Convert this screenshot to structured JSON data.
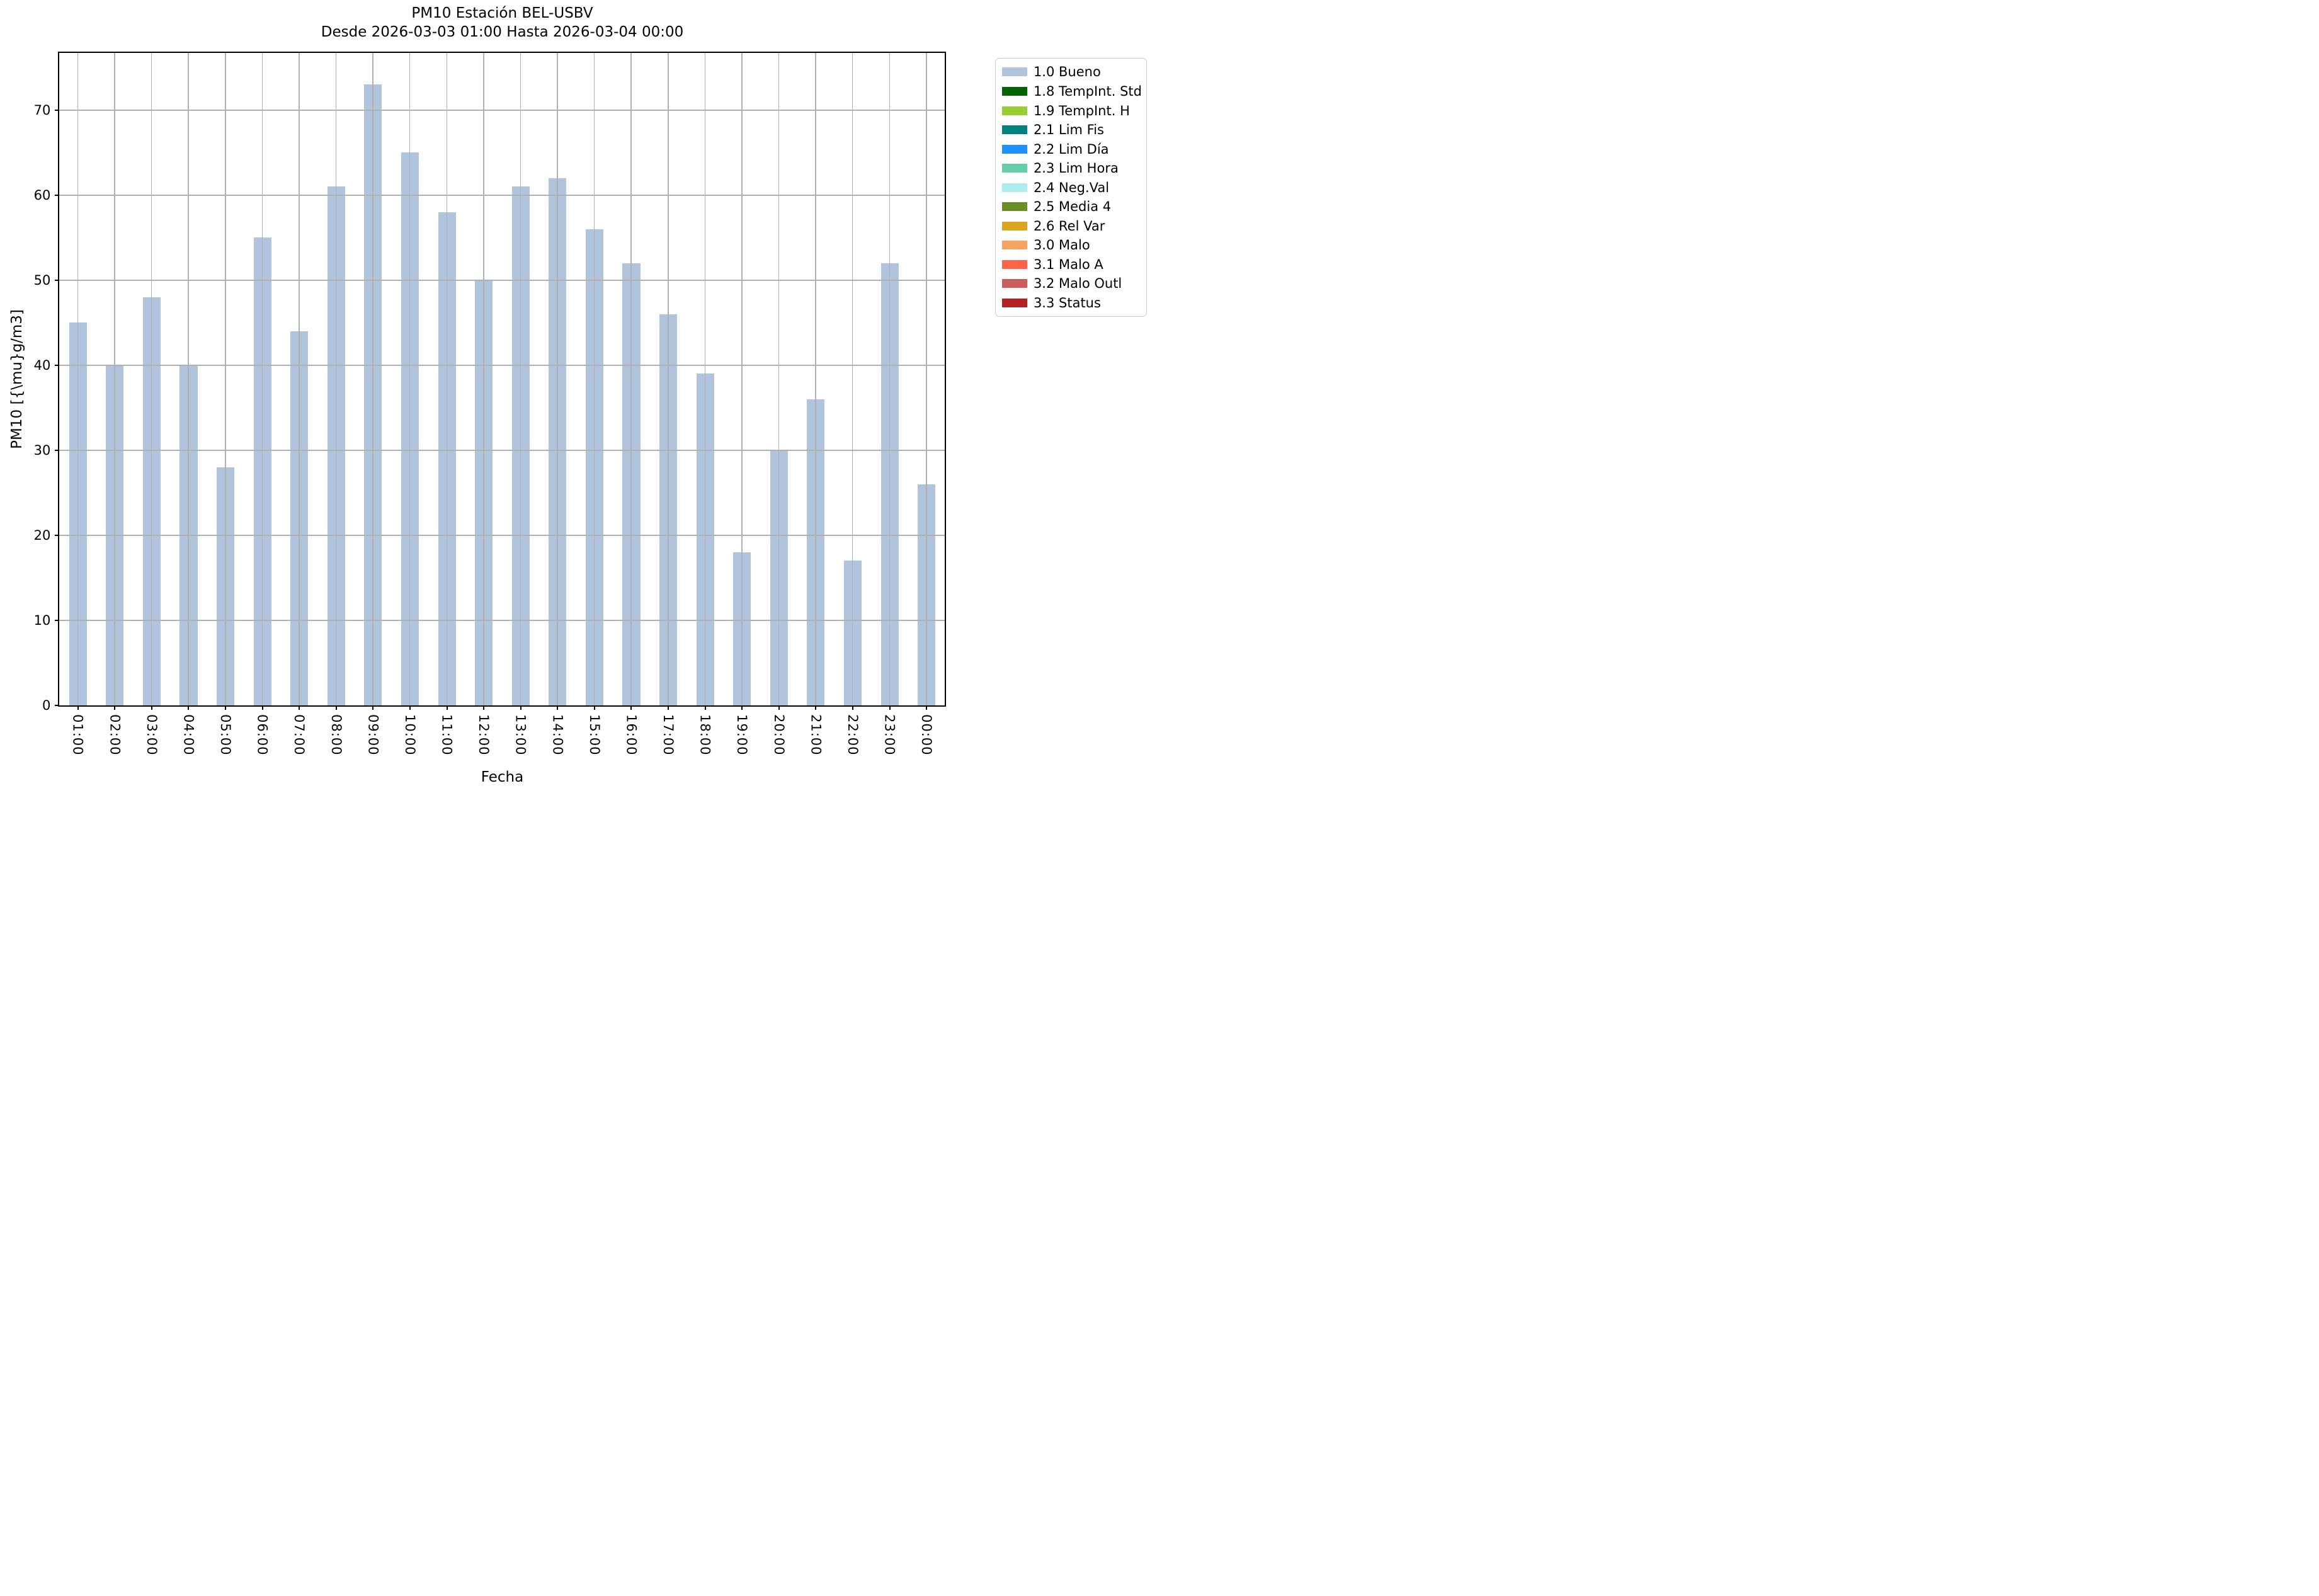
{
  "title": {
    "line1": "PM10 Estación BEL-USBV",
    "line2": "Desde 2026-03-03 01:00 Hasta 2026-03-04 00:00"
  },
  "chart_data": {
    "type": "bar",
    "title": "PM10 Estación BEL-USBV — Desde 2026-03-03 01:00 Hasta 2026-03-04 00:00",
    "xlabel": "Fecha",
    "ylabel": "PM10 [{\\mu}g/m3]",
    "categories": [
      "01:00",
      "02:00",
      "03:00",
      "04:00",
      "05:00",
      "06:00",
      "07:00",
      "08:00",
      "09:00",
      "10:00",
      "11:00",
      "12:00",
      "13:00",
      "14:00",
      "15:00",
      "16:00",
      "17:00",
      "18:00",
      "19:00",
      "20:00",
      "21:00",
      "22:00",
      "23:00",
      "00:00"
    ],
    "values": [
      45,
      40,
      48,
      40,
      28,
      55,
      44,
      61,
      73,
      65,
      58,
      50,
      61,
      62,
      56,
      52,
      46,
      39,
      18,
      30,
      36,
      17,
      52,
      26
    ],
    "series_color": "#B0C4DE",
    "series_legend_key": "1.0 Bueno",
    "ylim": [
      0,
      76.7
    ],
    "yticks": [
      0,
      10,
      20,
      30,
      40,
      50,
      60,
      70
    ],
    "grid": true,
    "grid_color": "#b0b0b0",
    "legend_position": "outside-upper-right",
    "legend": [
      {
        "label": "1.0 Bueno",
        "color": "#B0C4DE"
      },
      {
        "label": "1.8 TempInt. Std",
        "color": "#006400"
      },
      {
        "label": "1.9 TempInt. H",
        "color": "#9ACD32"
      },
      {
        "label": "2.1 Lim Fis",
        "color": "#008080"
      },
      {
        "label": "2.2 Lim Día",
        "color": "#1E90FF"
      },
      {
        "label": "2.3 Lim Hora",
        "color": "#66CDAA"
      },
      {
        "label": "2.4 Neg.Val",
        "color": "#AFEEEE"
      },
      {
        "label": "2.5 Media 4",
        "color": "#6B8E23"
      },
      {
        "label": "2.6 Rel Var",
        "color": "#DAA520"
      },
      {
        "label": "3.0 Malo",
        "color": "#F4A460"
      },
      {
        "label": "3.1 Malo A",
        "color": "#FF6347"
      },
      {
        "label": "3.2 Malo Outl",
        "color": "#CD5C5C"
      },
      {
        "label": "3.3 Status",
        "color": "#B22222"
      }
    ]
  }
}
